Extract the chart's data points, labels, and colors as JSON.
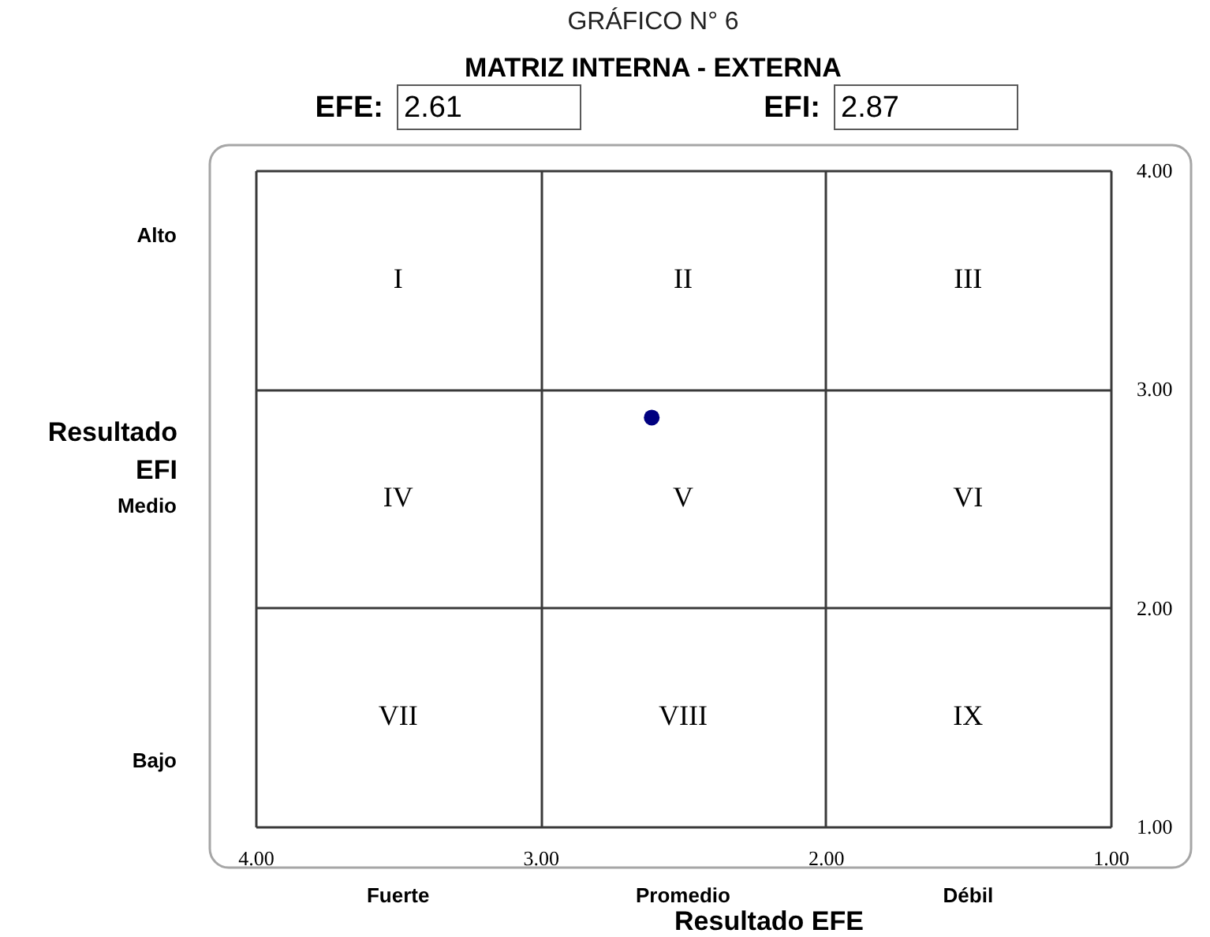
{
  "chart_data": {
    "type": "scatter",
    "title": "GRÁFICO N° 6",
    "subtitle": "MATRIZ INTERNA - EXTERNA",
    "xlabel": "Resultado EFE",
    "ylabel": "Resultado EFI",
    "x": [
      2.61
    ],
    "values": [
      2.87
    ],
    "color": "#000080",
    "marker": "circle",
    "xlim": [
      4,
      1
    ],
    "ylim": [
      1,
      4
    ],
    "xticks": [
      {
        "value": 4,
        "label": "4.00"
      },
      {
        "value": 3,
        "label": "3.00"
      },
      {
        "value": 2,
        "label": "2.00"
      },
      {
        "value": 1,
        "label": "1.00"
      }
    ],
    "yticks": [
      {
        "value": 1,
        "label": "1.00"
      },
      {
        "value": 2,
        "label": "2.00"
      },
      {
        "value": 3,
        "label": "3.00"
      },
      {
        "value": 4,
        "label": "4.00"
      }
    ],
    "grid": true,
    "annotations": [
      "EFE:",
      "2.61",
      "EFI:",
      "2.87",
      "Alto",
      "Medio",
      "Bajo",
      "Fuerte",
      "Promedio",
      "Débil",
      "I",
      "II",
      "III",
      "IV",
      "V",
      "VI",
      "VII",
      "VIII",
      "IX"
    ]
  }
}
